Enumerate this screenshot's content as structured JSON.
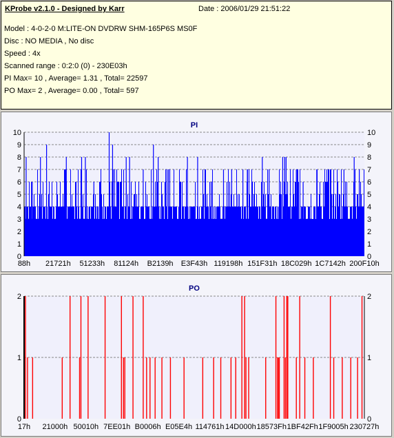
{
  "info": {
    "title": "KProbe v2.1.0 - Designed by Karr",
    "date": "Date : 2006/01/29 21:51:22",
    "lines": [
      "Model : 4-0-2-0 M:LITE-ON DVDRW SHM-165P6S MS0F",
      "Disc : NO MEDIA , No disc",
      "Speed : 4x",
      "Scanned range : 0:2:0 (0) - 230E03h",
      "PI Max= 10 , Average= 1.31 , Total= 22597",
      "PO Max= 2 , Average= 0.00 , Total= 597"
    ]
  },
  "colors": {
    "bars_pi": "#0000ff",
    "bars_po": "#ff0000",
    "plot_bg": "#f0f0fc",
    "grid": "#888888"
  },
  "chart_data": [
    {
      "type": "bar",
      "title": "PI",
      "x_tick_labels": [
        "88h",
        "21721h",
        "51233h",
        "81124h",
        "B2139h",
        "E3F43h",
        "119198h",
        "151F31h",
        "18C029h",
        "1C7142h",
        "200F10h"
      ],
      "ylim": [
        0,
        10
      ],
      "y_ticks": [
        0,
        1,
        2,
        3,
        4,
        5,
        6,
        7,
        8,
        9,
        10
      ],
      "grid": true,
      "baseline_values": [
        4,
        3
      ],
      "peak_values": [
        5,
        6,
        7,
        8,
        10
      ],
      "spikes": [
        {
          "x_frac": 0.006,
          "value": 8
        },
        {
          "x_frac": 0.024,
          "value": 6
        },
        {
          "x_frac": 0.048,
          "value": 8
        },
        {
          "x_frac": 0.066,
          "value": 9
        },
        {
          "x_frac": 0.12,
          "value": 7
        },
        {
          "x_frac": 0.124,
          "value": 8
        },
        {
          "x_frac": 0.169,
          "value": 8
        },
        {
          "x_frac": 0.18,
          "value": 8
        },
        {
          "x_frac": 0.205,
          "value": 6
        },
        {
          "x_frac": 0.25,
          "value": 10
        },
        {
          "x_frac": 0.26,
          "value": 9
        },
        {
          "x_frac": 0.3,
          "value": 8
        },
        {
          "x_frac": 0.31,
          "value": 8
        },
        {
          "x_frac": 0.35,
          "value": 7
        },
        {
          "x_frac": 0.38,
          "value": 9
        },
        {
          "x_frac": 0.394,
          "value": 8
        },
        {
          "x_frac": 0.42,
          "value": 7
        },
        {
          "x_frac": 0.428,
          "value": 7
        },
        {
          "x_frac": 0.48,
          "value": 8
        },
        {
          "x_frac": 0.51,
          "value": 8
        },
        {
          "x_frac": 0.55,
          "value": 6
        },
        {
          "x_frac": 0.586,
          "value": 7
        },
        {
          "x_frac": 0.61,
          "value": 7
        },
        {
          "x_frac": 0.643,
          "value": 7
        },
        {
          "x_frac": 0.656,
          "value": 7
        },
        {
          "x_frac": 0.7,
          "value": 8
        },
        {
          "x_frac": 0.72,
          "value": 7
        },
        {
          "x_frac": 0.76,
          "value": 8
        },
        {
          "x_frac": 0.766,
          "value": 8
        },
        {
          "x_frac": 0.77,
          "value": 8
        },
        {
          "x_frac": 0.8,
          "value": 7
        },
        {
          "x_frac": 0.82,
          "value": 6
        },
        {
          "x_frac": 0.86,
          "value": 7
        },
        {
          "x_frac": 0.9,
          "value": 7
        },
        {
          "x_frac": 0.94,
          "value": 7
        },
        {
          "x_frac": 0.97,
          "value": 8
        },
        {
          "x_frac": 0.985,
          "value": 7
        }
      ]
    },
    {
      "type": "bar",
      "title": "PO",
      "x_tick_labels": [
        "17h",
        "21000h",
        "50010h",
        "7EE01h",
        "B0006h",
        "E05E4h",
        "114761h",
        "14D000h",
        "18573Fh",
        "1BF42Fh",
        "1F9005h",
        "230727h"
      ],
      "ylim": [
        0,
        2
      ],
      "y_ticks": [
        0,
        1,
        2
      ],
      "grid": true,
      "bars": [
        {
          "x_frac": 0.004,
          "value": 2
        },
        {
          "x_frac": 0.01,
          "value": 1
        },
        {
          "x_frac": 0.025,
          "value": 1
        },
        {
          "x_frac": 0.112,
          "value": 1
        },
        {
          "x_frac": 0.135,
          "value": 2
        },
        {
          "x_frac": 0.163,
          "value": 1
        },
        {
          "x_frac": 0.167,
          "value": 2
        },
        {
          "x_frac": 0.188,
          "value": 2
        },
        {
          "x_frac": 0.238,
          "value": 2
        },
        {
          "x_frac": 0.286,
          "value": 2
        },
        {
          "x_frac": 0.292,
          "value": 1
        },
        {
          "x_frac": 0.296,
          "value": 1
        },
        {
          "x_frac": 0.32,
          "value": 2
        },
        {
          "x_frac": 0.35,
          "value": 2
        },
        {
          "x_frac": 0.36,
          "value": 1
        },
        {
          "x_frac": 0.37,
          "value": 1
        },
        {
          "x_frac": 0.385,
          "value": 1
        },
        {
          "x_frac": 0.405,
          "value": 1
        },
        {
          "x_frac": 0.43,
          "value": 1
        },
        {
          "x_frac": 0.47,
          "value": 1
        },
        {
          "x_frac": 0.525,
          "value": 1
        },
        {
          "x_frac": 0.557,
          "value": 1
        },
        {
          "x_frac": 0.578,
          "value": 1
        },
        {
          "x_frac": 0.608,
          "value": 1
        },
        {
          "x_frac": 0.622,
          "value": 1
        },
        {
          "x_frac": 0.64,
          "value": 2
        },
        {
          "x_frac": 0.648,
          "value": 2
        },
        {
          "x_frac": 0.652,
          "value": 1
        },
        {
          "x_frac": 0.66,
          "value": 1
        },
        {
          "x_frac": 0.71,
          "value": 1
        },
        {
          "x_frac": 0.74,
          "value": 2
        },
        {
          "x_frac": 0.745,
          "value": 1
        },
        {
          "x_frac": 0.747,
          "value": 1
        },
        {
          "x_frac": 0.75,
          "value": 1
        },
        {
          "x_frac": 0.764,
          "value": 2
        },
        {
          "x_frac": 0.768,
          "value": 1
        },
        {
          "x_frac": 0.772,
          "value": 2
        },
        {
          "x_frac": 0.775,
          "value": 2
        },
        {
          "x_frac": 0.8,
          "value": 1
        },
        {
          "x_frac": 0.81,
          "value": 2
        },
        {
          "x_frac": 0.825,
          "value": 1
        },
        {
          "x_frac": 0.85,
          "value": 1
        },
        {
          "x_frac": 0.9,
          "value": 2
        },
        {
          "x_frac": 0.91,
          "value": 1
        },
        {
          "x_frac": 0.935,
          "value": 1
        },
        {
          "x_frac": 0.96,
          "value": 1
        },
        {
          "x_frac": 0.98,
          "value": 1
        },
        {
          "x_frac": 0.993,
          "value": 2
        }
      ]
    }
  ]
}
